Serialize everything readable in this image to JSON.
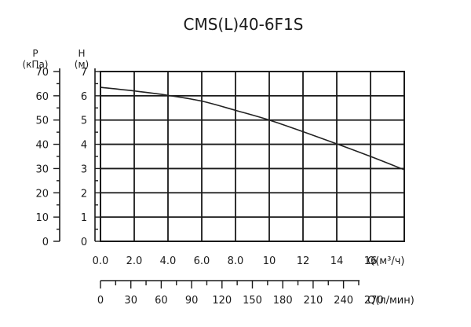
{
  "chart_data": {
    "type": "line",
    "title": "CMS(L)40-6F1S",
    "x_primary": {
      "label": "Q(м³/ч)",
      "ticks": [
        "0.0",
        "2.0",
        "4.0",
        "6.0",
        "8.0",
        "10",
        "12",
        "14",
        "16"
      ],
      "range": [
        0,
        18
      ]
    },
    "x_secondary": {
      "label": "Q(л/мин)",
      "ticks": [
        0,
        30,
        60,
        90,
        120,
        150,
        180,
        210,
        240,
        270
      ],
      "range": [
        0,
        300
      ]
    },
    "y_pressure": {
      "label_line1": "P",
      "label_line2": "(кПа)",
      "ticks": [
        0,
        10,
        20,
        30,
        40,
        50,
        60,
        70
      ],
      "range": [
        0,
        70
      ]
    },
    "y_head": {
      "label_line1": "H",
      "label_line2": "(м)",
      "ticks": [
        0,
        1,
        2,
        3,
        4,
        5,
        6,
        7
      ],
      "range": [
        0,
        7
      ]
    },
    "series": [
      {
        "x": [
          0,
          2,
          4,
          6,
          8,
          10,
          12,
          14,
          16,
          18
        ],
        "y": [
          6.35,
          6.2,
          6.02,
          5.78,
          5.4,
          5.0,
          4.52,
          4.02,
          3.5,
          2.95
        ]
      }
    ],
    "grid": true
  }
}
